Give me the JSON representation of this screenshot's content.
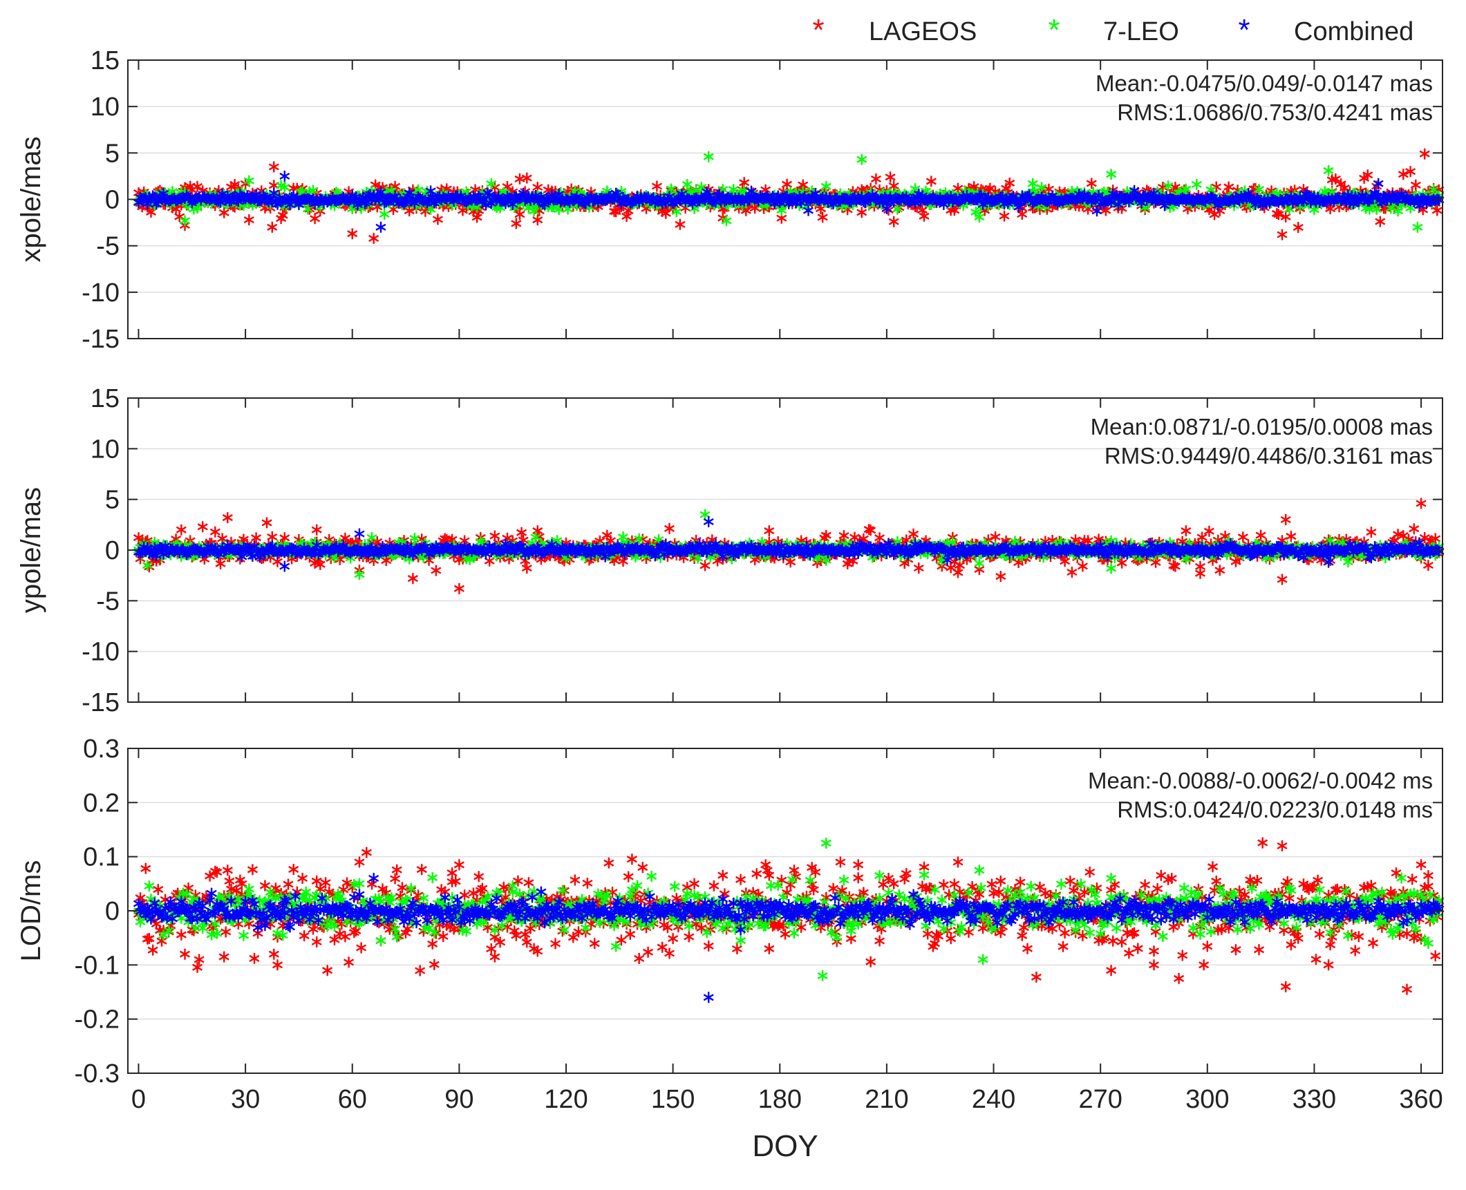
{
  "legend": {
    "items": [
      {
        "label": "LAGEOS",
        "color": "#ff0000"
      },
      {
        "label": "7-LEO",
        "color": "#00ff00"
      },
      {
        "label": "Combined",
        "color": "#0000ff"
      }
    ]
  },
  "chart_data": [
    {
      "type": "scatter",
      "ylabel": "xpole/mas",
      "xlabel": "",
      "xlim": [
        -3,
        366
      ],
      "ylim": [
        -15,
        15
      ],
      "xticks": [
        0,
        30,
        60,
        90,
        120,
        150,
        180,
        210,
        240,
        270,
        300,
        330,
        360
      ],
      "yticks": [
        -15,
        -10,
        -5,
        0,
        5,
        10,
        15
      ],
      "show_xtick_labels": false,
      "grid": true,
      "annotations": [
        "Mean:-0.0475/0.049/-0.0147 mas",
        "RMS:1.0686/0.753/0.4241 mas"
      ],
      "series": [
        {
          "name": "LAGEOS",
          "color": "#ff0000",
          "scatter": 0.9,
          "outliers": [
            [
              13,
              -2.8
            ],
            [
              27,
              1.6
            ],
            [
              31,
              -2.2
            ],
            [
              38,
              3.5
            ],
            [
              60,
              -3.7
            ],
            [
              66,
              -4.2
            ],
            [
              72,
              1.4
            ],
            [
              100,
              1.3
            ],
            [
              106,
              -2.6
            ],
            [
              107,
              2.2
            ],
            [
              109,
              2.3
            ],
            [
              112,
              1.3
            ],
            [
              152,
              -2.7
            ],
            [
              164,
              -2.0
            ],
            [
              170,
              1.8
            ],
            [
              203,
              -1.4
            ],
            [
              207,
              2.2
            ],
            [
              211,
              2.4
            ],
            [
              212,
              -2.4
            ],
            [
              248,
              -1.6
            ],
            [
              321,
              -3.8
            ],
            [
              335,
              2.1
            ],
            [
              355,
              2.7
            ],
            [
              357,
              3.0
            ],
            [
              361,
              4.9
            ]
          ]
        },
        {
          "name": "7-LEO",
          "color": "#00ff00",
          "scatter": 0.55,
          "outliers": [
            [
              13,
              -2.3
            ],
            [
              31,
              2.0
            ],
            [
              40,
              1.5
            ],
            [
              69,
              -1.6
            ],
            [
              154,
              1.6
            ],
            [
              158,
              1.3
            ],
            [
              160,
              4.6
            ],
            [
              165,
              -2.3
            ],
            [
              193,
              1.4
            ],
            [
              203,
              4.3
            ],
            [
              236,
              -1.9
            ],
            [
              251,
              1.7
            ],
            [
              273,
              2.7
            ],
            [
              297,
              1.6
            ],
            [
              334,
              3.1
            ],
            [
              359,
              -3.0
            ],
            [
              363,
              -0.3
            ]
          ]
        },
        {
          "name": "Combined",
          "color": "#0000ff",
          "scatter": 0.35,
          "outliers": [
            [
              41,
              2.5
            ],
            [
              68,
              -3.0
            ],
            [
              188,
              -1.2
            ],
            [
              348,
              1.7
            ],
            [
              210,
              -1.0
            ]
          ]
        }
      ]
    },
    {
      "type": "scatter",
      "ylabel": "ypole/mas",
      "xlabel": "",
      "xlim": [
        -3,
        366
      ],
      "ylim": [
        -15,
        15
      ],
      "xticks": [
        0,
        30,
        60,
        90,
        120,
        150,
        180,
        210,
        240,
        270,
        300,
        330,
        360
      ],
      "yticks": [
        -15,
        -10,
        -5,
        0,
        5,
        10,
        15
      ],
      "show_xtick_labels": false,
      "grid": true,
      "annotations": [
        "Mean:0.0871/-0.0195/0.0008 mas",
        "RMS:0.9449/0.4486/0.3161 mas"
      ],
      "series": [
        {
          "name": "LAGEOS",
          "color": "#ff0000",
          "scatter": 0.8,
          "outliers": [
            [
              12,
              2.0
            ],
            [
              18,
              2.3
            ],
            [
              25,
              3.2
            ],
            [
              36,
              2.7
            ],
            [
              50,
              2.0
            ],
            [
              62,
              -2.0
            ],
            [
              77,
              -2.8
            ],
            [
              90,
              -3.8
            ],
            [
              112,
              1.9
            ],
            [
              177,
              1.9
            ],
            [
              242,
              -2.6
            ],
            [
              294,
              1.9
            ],
            [
              298,
              -2.3
            ],
            [
              321,
              -2.9
            ],
            [
              322,
              3.0
            ],
            [
              358,
              2.1
            ],
            [
              360,
              4.6
            ],
            [
              362,
              -1.5
            ]
          ]
        },
        {
          "name": "7-LEO",
          "color": "#00ff00",
          "scatter": 0.45,
          "outliers": [
            [
              62,
              -2.4
            ],
            [
              159,
              3.5
            ],
            [
              193,
              -1.0
            ],
            [
              273,
              -1.8
            ],
            [
              363,
              0.2
            ]
          ]
        },
        {
          "name": "Combined",
          "color": "#0000ff",
          "scatter": 0.3,
          "outliers": [
            [
              41,
              -1.6
            ],
            [
              62,
              1.6
            ],
            [
              160,
              2.8
            ],
            [
              334,
              -1.2
            ]
          ]
        }
      ]
    },
    {
      "type": "scatter",
      "ylabel": "LOD/ms",
      "xlabel": "DOY",
      "xlim": [
        -3,
        366
      ],
      "ylim": [
        -0.3,
        0.3
      ],
      "xticks": [
        0,
        30,
        60,
        90,
        120,
        150,
        180,
        210,
        240,
        270,
        300,
        330,
        360
      ],
      "yticks": [
        -0.3,
        -0.2,
        -0.1,
        0,
        0.1,
        0.2,
        0.3
      ],
      "show_xtick_labels": true,
      "grid": true,
      "annotations": [
        "Mean:-0.0088/-0.0062/-0.0042 ms",
        "RMS:0.0424/0.0223/0.0148 ms"
      ],
      "series": [
        {
          "name": "LAGEOS",
          "color": "#ff0000",
          "scatter": 0.045,
          "outliers": [
            [
              13,
              -0.08
            ],
            [
              17,
              -0.09
            ],
            [
              24,
              -0.085
            ],
            [
              25,
              0.075
            ],
            [
              29,
              0.05
            ],
            [
              38,
              -0.08
            ],
            [
              39,
              -0.1
            ],
            [
              46,
              0.06
            ],
            [
              50,
              0.055
            ],
            [
              53,
              -0.11
            ],
            [
              59,
              -0.095
            ],
            [
              62,
              0.09
            ],
            [
              88,
              0.07
            ],
            [
              90,
              0.085
            ],
            [
              100,
              -0.085
            ],
            [
              111,
              -0.07
            ],
            [
              156,
              0.05
            ],
            [
              160,
              -0.065
            ],
            [
              176,
              0.085
            ],
            [
              177,
              -0.07
            ],
            [
              184,
              0.075
            ],
            [
              189,
              0.08
            ],
            [
              197,
              0.09
            ],
            [
              202,
              0.085
            ],
            [
              230,
              0.09
            ],
            [
              242,
              0.055
            ],
            [
              273,
              -0.11
            ],
            [
              285,
              -0.1
            ],
            [
              292,
              -0.125
            ],
            [
              299,
              -0.1
            ],
            [
              321,
              0.12
            ],
            [
              322,
              -0.14
            ],
            [
              334,
              -0.1
            ],
            [
              353,
              0.07
            ],
            [
              356,
              -0.145
            ],
            [
              360,
              0.085
            ],
            [
              362,
              0.065
            ]
          ]
        },
        {
          "name": "7-LEO",
          "color": "#00ff00",
          "scatter": 0.025,
          "outliers": [
            [
              62,
              0.05
            ],
            [
              68,
              -0.055
            ],
            [
              105,
              0.035
            ],
            [
              169,
              -0.055
            ],
            [
              192,
              -0.12
            ],
            [
              193,
              0.125
            ],
            [
              208,
              0.065
            ],
            [
              236,
              0.075
            ],
            [
              237,
              -0.09
            ],
            [
              273,
              0.06
            ],
            [
              362,
              -0.06
            ]
          ]
        },
        {
          "name": "Combined",
          "color": "#0000ff",
          "scatter": 0.012,
          "outliers": [
            [
              66,
              0.06
            ],
            [
              160,
              -0.16
            ],
            [
              169,
              -0.035
            ],
            [
              113,
              0.035
            ],
            [
              62,
              0.03
            ],
            [
              41,
              0.02
            ]
          ]
        }
      ]
    }
  ]
}
